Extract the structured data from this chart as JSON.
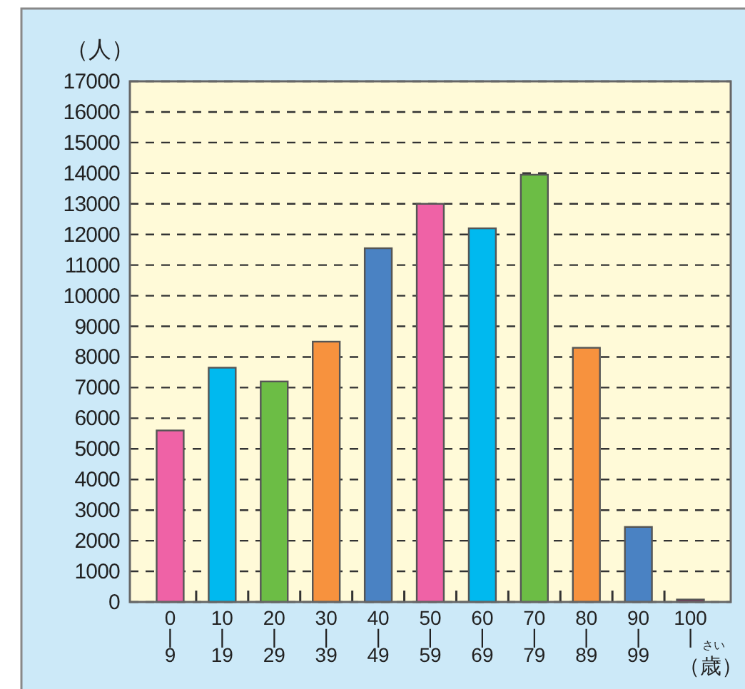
{
  "chart_data": {
    "type": "bar",
    "ylabel": "（人）",
    "xlabel": "（歳）",
    "annotations": [
      "さい"
    ],
    "categories": [
      "0\n|\n9",
      "10\n|\n19",
      "20\n|\n29",
      "30\n|\n39",
      "40\n|\n49",
      "50\n|\n59",
      "60\n|\n69",
      "70\n|\n79",
      "80\n|\n89",
      "90\n|\n99",
      "100\n|"
    ],
    "values": [
      5600,
      7650,
      7200,
      8500,
      11550,
      13000,
      12200,
      13950,
      8300,
      2450,
      80
    ],
    "colors": [
      "#ef62a6",
      "#00b9ef",
      "#6cbd45",
      "#f7923e",
      "#4a82c3",
      "#ef62a6",
      "#00b9ef",
      "#6cbd45",
      "#f7923e",
      "#4a82c3",
      "#8b1a5a"
    ],
    "ylim": [
      0,
      17000
    ],
    "yticks": [
      0,
      1000,
      2000,
      3000,
      4000,
      5000,
      6000,
      7000,
      8000,
      9000,
      10000,
      11000,
      12000,
      13000,
      14000,
      15000,
      16000,
      17000
    ],
    "grid": "y"
  }
}
